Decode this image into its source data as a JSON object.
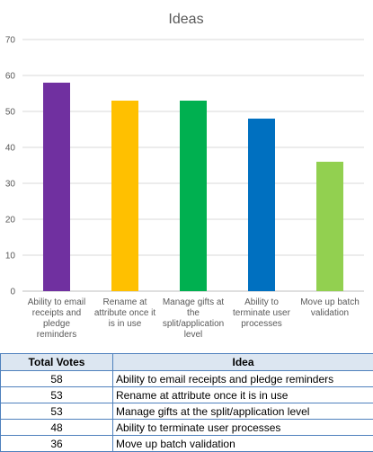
{
  "chart_data": {
    "type": "bar",
    "title": "Ideas",
    "categories": [
      "Ability to email receipts and pledge reminders",
      "Rename at attribute once it is in use",
      "Manage gifts at the split/application level",
      "Ability to terminate user processes",
      "Move up batch validation"
    ],
    "category_label_lines": [
      [
        "Ability to email",
        "receipts and",
        "pledge",
        "reminders"
      ],
      [
        "Rename at",
        "attribute once it",
        "is in use"
      ],
      [
        "Manage gifts at",
        "the",
        "split/application",
        "level"
      ],
      [
        "Ability to",
        "terminate user",
        "processes"
      ],
      [
        "Move up batch",
        "validation"
      ]
    ],
    "values": [
      58,
      53,
      53,
      48,
      36
    ],
    "colors": [
      "#7030a0",
      "#ffc000",
      "#00b050",
      "#0070c0",
      "#92d050"
    ],
    "ylim": [
      0,
      70
    ],
    "yticks": [
      0,
      10,
      20,
      30,
      40,
      50,
      60,
      70
    ],
    "grid": true,
    "legend": "none"
  },
  "table": {
    "headers": [
      "Total Votes",
      "Idea"
    ],
    "rows": [
      {
        "votes": "58",
        "idea": "Ability to email receipts and pledge reminders"
      },
      {
        "votes": "53",
        "idea": "Rename at attribute once it is in use"
      },
      {
        "votes": "53",
        "idea": "Manage gifts at the split/application level"
      },
      {
        "votes": "48",
        "idea": "Ability to terminate user processes"
      },
      {
        "votes": "36",
        "idea": "Move up batch validation"
      }
    ]
  }
}
